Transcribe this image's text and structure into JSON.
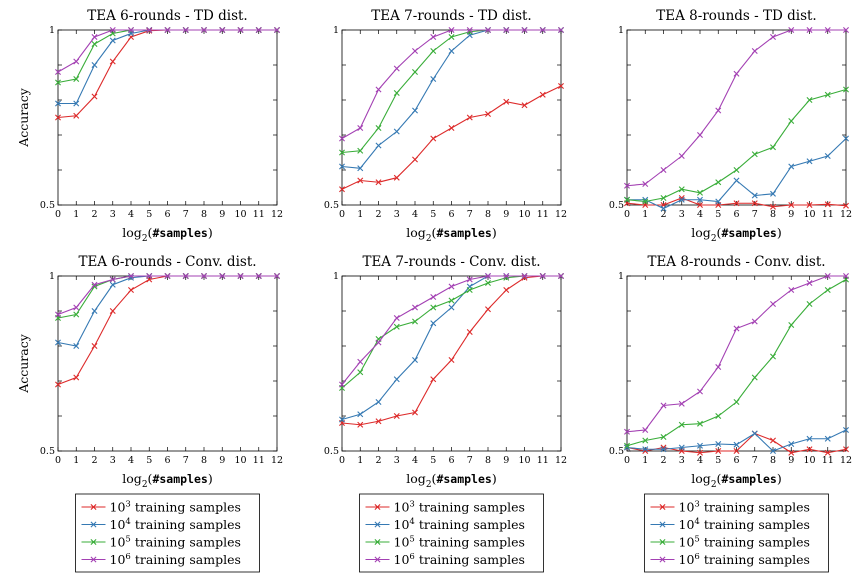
{
  "chart_data": [
    {
      "type": "line",
      "title": "TEA 6-rounds - TD dist.",
      "ylabel": "Accuracy",
      "xlabel": "log2(#samples)",
      "x": [
        0,
        1,
        2,
        3,
        4,
        5,
        6,
        7,
        8,
        9,
        10,
        11,
        12
      ],
      "ylim": [
        0.5,
        1
      ],
      "yticks": [
        "0.5",
        "1"
      ],
      "series": [
        {
          "name": "10^3 training samples",
          "color": "#dd2a2a",
          "values": [
            0.75,
            0.755,
            0.81,
            0.91,
            0.98,
            0.998,
            1,
            1,
            1,
            1,
            1,
            1,
            1
          ]
        },
        {
          "name": "10^4 training samples",
          "color": "#3579b3",
          "values": [
            0.79,
            0.79,
            0.9,
            0.97,
            0.99,
            1,
            1,
            1,
            1,
            1,
            1,
            1,
            1
          ]
        },
        {
          "name": "10^5 training samples",
          "color": "#39ad39",
          "values": [
            0.85,
            0.86,
            0.96,
            0.99,
            1,
            1,
            1,
            1,
            1,
            1,
            1,
            1,
            1
          ]
        },
        {
          "name": "10^6 training samples",
          "color": "#a340b3",
          "values": [
            0.88,
            0.91,
            0.98,
            1,
            1,
            1,
            1,
            1,
            1,
            1,
            1,
            1,
            1
          ]
        }
      ]
    },
    {
      "type": "line",
      "title": "TEA 7-rounds - TD dist.",
      "ylabel": "",
      "xlabel": "log2(#samples)",
      "x": [
        0,
        1,
        2,
        3,
        4,
        5,
        6,
        7,
        8,
        9,
        10,
        11,
        12
      ],
      "ylim": [
        0.5,
        1
      ],
      "yticks": [
        "0.5",
        "1"
      ],
      "series": [
        {
          "name": "10^3 training samples",
          "color": "#dd2a2a",
          "values": [
            0.545,
            0.57,
            0.565,
            0.578,
            0.63,
            0.69,
            0.72,
            0.75,
            0.76,
            0.795,
            0.785,
            0.815,
            0.84
          ]
        },
        {
          "name": "10^4 training samples",
          "color": "#3579b3",
          "values": [
            0.61,
            0.605,
            0.67,
            0.71,
            0.77,
            0.86,
            0.94,
            0.985,
            1,
            1,
            1,
            1,
            1
          ]
        },
        {
          "name": "10^5 training samples",
          "color": "#39ad39",
          "values": [
            0.65,
            0.655,
            0.72,
            0.82,
            0.88,
            0.94,
            0.98,
            0.995,
            1,
            1,
            1,
            1,
            1
          ]
        },
        {
          "name": "10^6 training samples",
          "color": "#a340b3",
          "values": [
            0.69,
            0.72,
            0.83,
            0.89,
            0.94,
            0.98,
            1,
            1,
            1,
            1,
            1,
            1,
            1
          ]
        }
      ]
    },
    {
      "type": "line",
      "title": "TEA 8-rounds - TD dist.",
      "ylabel": "",
      "xlabel": "log2(#samples)",
      "x": [
        0,
        1,
        2,
        3,
        4,
        5,
        6,
        7,
        8,
        9,
        10,
        11,
        12
      ],
      "ylim": [
        0.5,
        1
      ],
      "yticks": [
        "0.5",
        "1"
      ],
      "series": [
        {
          "name": "10^3 training samples",
          "color": "#dd2a2a",
          "values": [
            0.505,
            0.5,
            0.5,
            0.52,
            0.5,
            0.5,
            0.505,
            0.505,
            0.495,
            0.5,
            0.5,
            0.502,
            0.498
          ]
        },
        {
          "name": "10^4 training samples",
          "color": "#3579b3",
          "values": [
            0.515,
            0.515,
            0.49,
            0.515,
            0.515,
            0.51,
            0.57,
            0.527,
            0.532,
            0.61,
            0.625,
            0.64,
            0.69
          ]
        },
        {
          "name": "10^5 training samples",
          "color": "#39ad39",
          "values": [
            0.515,
            0.51,
            0.52,
            0.545,
            0.535,
            0.565,
            0.6,
            0.645,
            0.665,
            0.74,
            0.8,
            0.815,
            0.83
          ]
        },
        {
          "name": "10^6 training samples",
          "color": "#a340b3",
          "values": [
            0.555,
            0.56,
            0.6,
            0.64,
            0.7,
            0.77,
            0.875,
            0.94,
            0.98,
            1,
            1,
            1,
            1
          ]
        }
      ]
    },
    {
      "type": "line",
      "title": "TEA 6-rounds - Conv. dist.",
      "ylabel": "Accuracy",
      "xlabel": "log2(#samples)",
      "x": [
        0,
        1,
        2,
        3,
        4,
        5,
        6,
        7,
        8,
        9,
        10,
        11,
        12
      ],
      "ylim": [
        0.5,
        1
      ],
      "yticks": [
        "0.5",
        "1"
      ],
      "series": [
        {
          "name": "10^3 training samples",
          "color": "#dd2a2a",
          "values": [
            0.69,
            0.71,
            0.8,
            0.9,
            0.96,
            0.99,
            1,
            1,
            1,
            1,
            1,
            1,
            1
          ]
        },
        {
          "name": "10^4 training samples",
          "color": "#3579b3",
          "values": [
            0.81,
            0.8,
            0.9,
            0.975,
            0.995,
            1,
            1,
            1,
            1,
            1,
            1,
            1,
            1
          ]
        },
        {
          "name": "10^5 training samples",
          "color": "#39ad39",
          "values": [
            0.88,
            0.89,
            0.97,
            0.99,
            1,
            1,
            1,
            1,
            1,
            1,
            1,
            1,
            1
          ]
        },
        {
          "name": "10^6 training samples",
          "color": "#a340b3",
          "values": [
            0.89,
            0.91,
            0.975,
            0.99,
            1,
            1,
            1,
            1,
            1,
            1,
            1,
            1,
            1
          ]
        }
      ]
    },
    {
      "type": "line",
      "title": "TEA 7-rounds - Conv. dist.",
      "ylabel": "",
      "xlabel": "log2(#samples)",
      "x": [
        0,
        1,
        2,
        3,
        4,
        5,
        6,
        7,
        8,
        9,
        10,
        11,
        12
      ],
      "ylim": [
        0.5,
        1
      ],
      "yticks": [
        "0.5",
        "1"
      ],
      "series": [
        {
          "name": "10^3 training samples",
          "color": "#dd2a2a",
          "values": [
            0.58,
            0.575,
            0.585,
            0.6,
            0.61,
            0.705,
            0.76,
            0.84,
            0.905,
            0.96,
            0.995,
            1,
            1
          ]
        },
        {
          "name": "10^4 training samples",
          "color": "#3579b3",
          "values": [
            0.59,
            0.605,
            0.64,
            0.705,
            0.76,
            0.865,
            0.91,
            0.97,
            1,
            1,
            1,
            1,
            1
          ]
        },
        {
          "name": "10^5 training samples",
          "color": "#39ad39",
          "values": [
            0.68,
            0.725,
            0.82,
            0.855,
            0.87,
            0.91,
            0.93,
            0.96,
            0.98,
            0.995,
            1,
            1,
            1
          ]
        },
        {
          "name": "10^6 training samples",
          "color": "#a340b3",
          "values": [
            0.69,
            0.755,
            0.81,
            0.88,
            0.91,
            0.94,
            0.97,
            0.99,
            1,
            1,
            1,
            1,
            1
          ]
        }
      ]
    },
    {
      "type": "line",
      "title": "TEA 8-rounds - Conv. dist.",
      "ylabel": "",
      "xlabel": "log2(#samples)",
      "x": [
        0,
        1,
        2,
        3,
        4,
        5,
        6,
        7,
        8,
        9,
        10,
        11,
        12
      ],
      "ylim": [
        0.5,
        1
      ],
      "yticks": [
        "0.5",
        "1"
      ],
      "series": [
        {
          "name": "10^3 training samples",
          "color": "#dd2a2a",
          "values": [
            0.51,
            0.5,
            0.51,
            0.5,
            0.495,
            0.5,
            0.5,
            0.55,
            0.53,
            0.495,
            0.505,
            0.495,
            0.505
          ]
        },
        {
          "name": "10^4 training samples",
          "color": "#3579b3",
          "values": [
            0.51,
            0.505,
            0.505,
            0.51,
            0.515,
            0.52,
            0.518,
            0.55,
            0.5,
            0.52,
            0.535,
            0.535,
            0.56
          ]
        },
        {
          "name": "10^5 training samples",
          "color": "#39ad39",
          "values": [
            0.515,
            0.53,
            0.54,
            0.575,
            0.578,
            0.6,
            0.64,
            0.71,
            0.77,
            0.86,
            0.92,
            0.96,
            0.99
          ]
        },
        {
          "name": "10^6 training samples",
          "color": "#a340b3",
          "values": [
            0.555,
            0.56,
            0.63,
            0.635,
            0.67,
            0.74,
            0.85,
            0.87,
            0.92,
            0.96,
            0.98,
            1,
            1
          ]
        }
      ]
    }
  ],
  "legend": {
    "entries": [
      {
        "base": "10",
        "exp": "3",
        "text": "training samples",
        "color": "#dd2a2a"
      },
      {
        "base": "10",
        "exp": "4",
        "text": "training samples",
        "color": "#3579b3"
      },
      {
        "base": "10",
        "exp": "5",
        "text": "training samples",
        "color": "#39ad39"
      },
      {
        "base": "10",
        "exp": "6",
        "text": "training samples",
        "color": "#a340b3"
      }
    ]
  },
  "xlabel_parts": {
    "func": "log",
    "sub": "2",
    "open": "(",
    "arg": "#samples",
    "close": ")"
  }
}
